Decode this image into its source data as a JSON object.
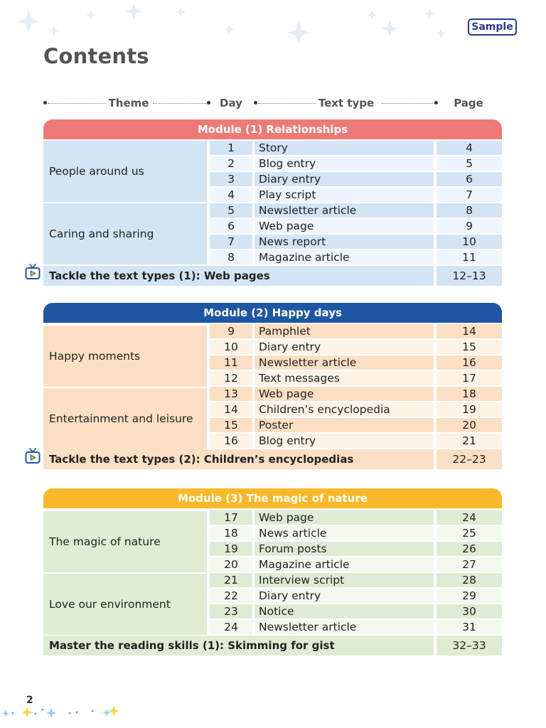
{
  "badge": "Sample",
  "title": "Contents",
  "columns": {
    "theme": "Theme",
    "day": "Day",
    "text_type": "Text type",
    "page": "Page"
  },
  "colors": {
    "module1_head": "#ed7a76",
    "module1_theme": "#d3e4f4",
    "module1_dark": "#d3e4f4",
    "module1_light": "#eef5fc",
    "module2_head": "#1e56a3",
    "module2_theme": "#fbdfc4",
    "module2_dark": "#fbdfc4",
    "module2_light": "#fdf2e6",
    "module3_head": "#f8b82a",
    "module3_theme": "#deecd4",
    "module3_dark": "#deecd4",
    "module3_light": "#f2f8ee"
  },
  "modules": [
    {
      "heading": "Module (1) Relationships",
      "themes": [
        "People around us",
        "Caring and sharing"
      ],
      "rows": [
        {
          "day": "1",
          "type": "Story",
          "page": "4"
        },
        {
          "day": "2",
          "type": "Blog entry",
          "page": "5"
        },
        {
          "day": "3",
          "type": "Diary entry",
          "page": "6"
        },
        {
          "day": "4",
          "type": "Play script",
          "page": "7"
        },
        {
          "day": "5",
          "type": "Newsletter article",
          "page": "8"
        },
        {
          "day": "6",
          "type": "Web page",
          "page": "9"
        },
        {
          "day": "7",
          "type": "News report",
          "page": "10"
        },
        {
          "day": "8",
          "type": "Magazine article",
          "page": "11"
        }
      ],
      "footer": {
        "text": "Tackle the text types (1): Web pages",
        "page": "12–13"
      }
    },
    {
      "heading": "Module (2) Happy days",
      "themes": [
        "Happy moments",
        "Entertainment and leisure"
      ],
      "rows": [
        {
          "day": "9",
          "type": "Pamphlet",
          "page": "14"
        },
        {
          "day": "10",
          "type": "Diary entry",
          "page": "15"
        },
        {
          "day": "11",
          "type": "Newsletter article",
          "page": "16"
        },
        {
          "day": "12",
          "type": "Text messages",
          "page": "17"
        },
        {
          "day": "13",
          "type": "Web page",
          "page": "18"
        },
        {
          "day": "14",
          "type": "Children’s encyclopedia",
          "page": "19"
        },
        {
          "day": "15",
          "type": "Poster",
          "page": "20"
        },
        {
          "day": "16",
          "type": "Blog entry",
          "page": "21"
        }
      ],
      "footer": {
        "text": "Tackle the text types (2): Children’s encyclopedias",
        "page": "22–23"
      }
    },
    {
      "heading": "Module (3) The magic of nature",
      "themes": [
        "The magic of nature",
        "Love our environment"
      ],
      "rows": [
        {
          "day": "17",
          "type": "Web page",
          "page": "24"
        },
        {
          "day": "18",
          "type": "News article",
          "page": "25"
        },
        {
          "day": "19",
          "type": "Forum posts",
          "page": "26"
        },
        {
          "day": "20",
          "type": "Magazine article",
          "page": "27"
        },
        {
          "day": "21",
          "type": "Interview script",
          "page": "28"
        },
        {
          "day": "22",
          "type": "Diary entry",
          "page": "29"
        },
        {
          "day": "23",
          "type": "Notice",
          "page": "30"
        },
        {
          "day": "24",
          "type": "Newsletter article",
          "page": "31"
        }
      ],
      "footer": {
        "text": "Master the reading skills (1): Skimming for gist",
        "page": "32–33"
      }
    }
  ],
  "page_number": "2"
}
